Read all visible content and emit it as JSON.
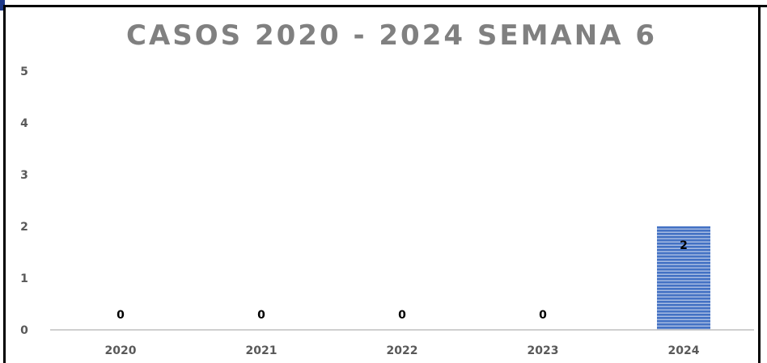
{
  "chart_data": {
    "type": "bar",
    "title": "CASOS 2020 - 2024 SEMANA 6",
    "categories": [
      "2020",
      "2021",
      "2022",
      "2023",
      "2024"
    ],
    "values": [
      0,
      0,
      0,
      0,
      2
    ],
    "data_labels": [
      "0",
      "0",
      "0",
      "0",
      "2"
    ],
    "ylim": [
      0,
      5
    ],
    "yticks": [
      "0",
      "1",
      "2",
      "3",
      "4",
      "5"
    ],
    "xlabel": "",
    "ylabel": "",
    "grid": false,
    "legend": "none",
    "bar_color": "#4472c4",
    "bar_stripe_color": "#ffffff"
  }
}
